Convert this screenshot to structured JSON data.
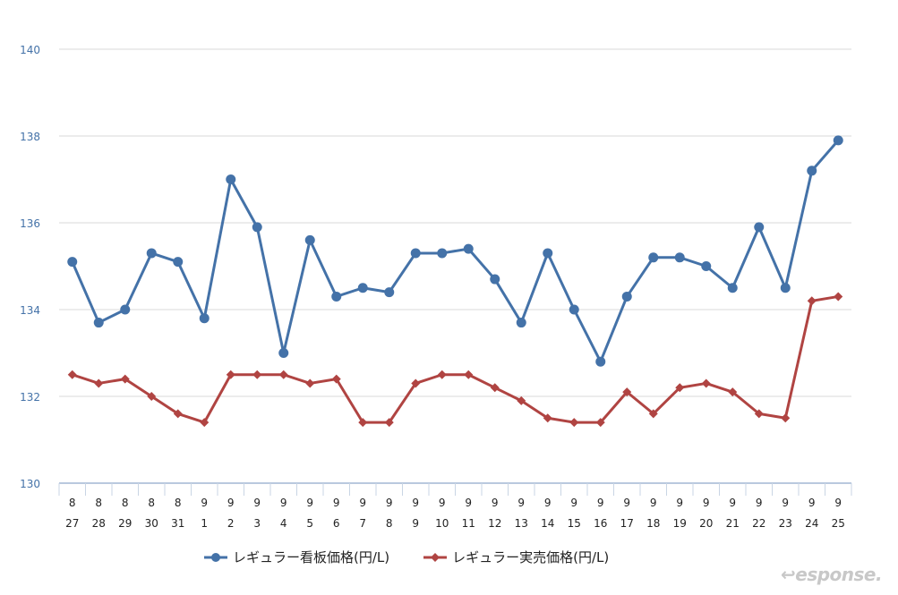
{
  "chart_data": {
    "type": "line",
    "title": "",
    "xlabel": "",
    "ylabel": "",
    "ylim": [
      130,
      140
    ],
    "yticks": [
      130,
      132,
      134,
      136,
      138,
      140
    ],
    "grid": true,
    "legend_position": "bottom",
    "categories_month": [
      "8",
      "8",
      "8",
      "8",
      "8",
      "9",
      "9",
      "9",
      "9",
      "9",
      "9",
      "9",
      "9",
      "9",
      "9",
      "9",
      "9",
      "9",
      "9",
      "9",
      "9",
      "9",
      "9",
      "9",
      "9",
      "9",
      "9",
      "9",
      "9",
      "9"
    ],
    "categories_day": [
      "27",
      "28",
      "29",
      "30",
      "31",
      "1",
      "2",
      "3",
      "4",
      "5",
      "6",
      "7",
      "8",
      "9",
      "10",
      "11",
      "12",
      "13",
      "14",
      "15",
      "16",
      "17",
      "18",
      "19",
      "20",
      "21",
      "22",
      "23",
      "24",
      "25"
    ],
    "series": [
      {
        "name": "レギュラー看板価格(円/L)",
        "color": "#4472a8",
        "marker": "circle",
        "values": [
          135.1,
          133.7,
          134.0,
          135.3,
          135.1,
          133.8,
          137.0,
          135.9,
          133.0,
          135.6,
          134.3,
          134.5,
          134.4,
          135.3,
          135.3,
          135.4,
          134.7,
          133.7,
          135.3,
          134.0,
          132.8,
          134.3,
          135.2,
          135.2,
          135.0,
          134.5,
          135.9,
          134.5,
          137.2,
          137.9
        ]
      },
      {
        "name": "レギュラー実売価格(円/L)",
        "color": "#b04442",
        "marker": "diamond",
        "values": [
          132.5,
          132.3,
          132.4,
          132.0,
          131.6,
          131.4,
          132.5,
          132.5,
          132.5,
          132.3,
          132.4,
          131.4,
          131.4,
          132.3,
          132.5,
          132.5,
          132.2,
          131.9,
          131.5,
          131.4,
          131.4,
          132.1,
          131.6,
          132.2,
          132.3,
          132.1,
          131.6,
          131.5,
          134.2,
          134.3
        ]
      }
    ]
  },
  "watermark": "Response."
}
